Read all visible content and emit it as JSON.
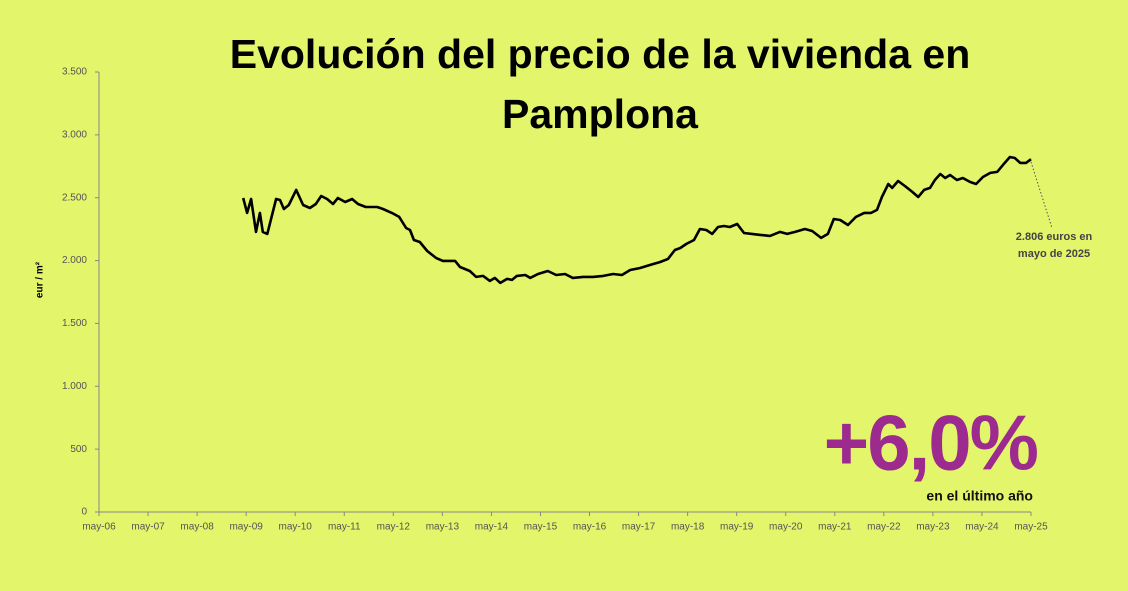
{
  "chart_data": {
    "type": "line",
    "title": "Evolución del precio de la vivienda en Pamplona",
    "y_label": "eur / m²",
    "grid": false,
    "xlim": [
      2006.33,
      2025.33
    ],
    "xticks": [
      {
        "value": 2006.33,
        "label": "may-06"
      },
      {
        "value": 2007.33,
        "label": "may-07"
      },
      {
        "value": 2008.33,
        "label": "may-08"
      },
      {
        "value": 2009.33,
        "label": "may-09"
      },
      {
        "value": 2010.33,
        "label": "may-10"
      },
      {
        "value": 2011.33,
        "label": "may-11"
      },
      {
        "value": 2012.33,
        "label": "may-12"
      },
      {
        "value": 2013.33,
        "label": "may-13"
      },
      {
        "value": 2014.33,
        "label": "may-14"
      },
      {
        "value": 2015.33,
        "label": "may-15"
      },
      {
        "value": 2016.33,
        "label": "may-16"
      },
      {
        "value": 2017.33,
        "label": "may-17"
      },
      {
        "value": 2018.33,
        "label": "may-18"
      },
      {
        "value": 2019.33,
        "label": "may-19"
      },
      {
        "value": 2020.33,
        "label": "may-20"
      },
      {
        "value": 2021.33,
        "label": "may-21"
      },
      {
        "value": 2022.33,
        "label": "may-22"
      },
      {
        "value": 2023.33,
        "label": "may-23"
      },
      {
        "value": 2024.33,
        "label": "may-24"
      },
      {
        "value": 2025.33,
        "label": "may-25"
      }
    ],
    "ylim": [
      0,
      3500
    ],
    "yticks": [
      0,
      500,
      {
        "value": 1000,
        "label": "1.000"
      },
      {
        "value": 1500,
        "label": "1.500"
      },
      {
        "value": 2000,
        "label": "2.000"
      },
      {
        "value": 2500,
        "label": "2.500"
      },
      {
        "value": 3000,
        "label": "3.000"
      },
      {
        "value": 3500,
        "label": "3.500"
      }
    ],
    "x": [
      2009.27,
      2009.35,
      2009.43,
      2009.53,
      2009.61,
      2009.67,
      2009.76,
      2009.94,
      2010.02,
      2010.1,
      2010.2,
      2010.35,
      2010.49,
      2010.63,
      2010.75,
      2010.86,
      2010.98,
      2011.1,
      2011.2,
      2011.35,
      2011.49,
      2011.61,
      2011.77,
      2012.0,
      2012.12,
      2012.3,
      2012.45,
      2012.59,
      2012.67,
      2012.75,
      2012.87,
      2013.02,
      2013.2,
      2013.34,
      2013.59,
      2013.69,
      2013.89,
      2014.02,
      2014.16,
      2014.3,
      2014.4,
      2014.51,
      2014.65,
      2014.75,
      2014.85,
      2015.02,
      2015.12,
      2015.28,
      2015.48,
      2015.65,
      2015.83,
      2015.99,
      2016.2,
      2016.4,
      2016.61,
      2016.81,
      2016.99,
      2017.16,
      2017.36,
      2017.56,
      2017.77,
      2017.93,
      2018.07,
      2018.18,
      2018.3,
      2018.46,
      2018.58,
      2018.71,
      2018.83,
      2018.95,
      2019.07,
      2019.19,
      2019.34,
      2019.48,
      2019.64,
      2019.81,
      2020.01,
      2020.21,
      2020.36,
      2020.52,
      2020.72,
      2020.87,
      2021.05,
      2021.19,
      2021.31,
      2021.44,
      2021.6,
      2021.76,
      2021.93,
      2022.07,
      2022.19,
      2022.29,
      2022.42,
      2022.5,
      2022.62,
      2022.76,
      2022.91,
      2023.03,
      2023.15,
      2023.27,
      2023.37,
      2023.48,
      2023.58,
      2023.68,
      2023.82,
      2023.94,
      2024.09,
      2024.21,
      2024.35,
      2024.5,
      2024.64,
      2024.76,
      2024.9,
      2025.0,
      2025.11,
      2025.23,
      2025.33
    ],
    "series": [
      {
        "color": "#000000",
        "values": [
          2498,
          2379,
          2490,
          2228,
          2379,
          2228,
          2212,
          2490,
          2482,
          2410,
          2442,
          2562,
          2442,
          2418,
          2450,
          2514,
          2490,
          2450,
          2498,
          2466,
          2490,
          2450,
          2426,
          2426,
          2410,
          2379,
          2347,
          2259,
          2243,
          2164,
          2148,
          2076,
          2021,
          1997,
          1997,
          1949,
          1917,
          1870,
          1878,
          1838,
          1862,
          1822,
          1854,
          1846,
          1878,
          1885,
          1862,
          1893,
          1917,
          1885,
          1893,
          1862,
          1870,
          1870,
          1878,
          1893,
          1885,
          1925,
          1941,
          1965,
          1989,
          2013,
          2084,
          2100,
          2132,
          2164,
          2251,
          2243,
          2212,
          2267,
          2275,
          2267,
          2291,
          2219,
          2212,
          2204,
          2196,
          2228,
          2212,
          2228,
          2251,
          2235,
          2180,
          2212,
          2331,
          2323,
          2283,
          2347,
          2379,
          2379,
          2403,
          2506,
          2609,
          2578,
          2633,
          2593,
          2546,
          2506,
          2562,
          2578,
          2641,
          2689,
          2657,
          2681,
          2641,
          2657,
          2625,
          2609,
          2665,
          2697,
          2705,
          2761,
          2824,
          2816,
          2777,
          2777,
          2806
        ]
      }
    ],
    "annotations": {
      "last_value": [
        "2.806 euros en",
        "mayo de 2025"
      ],
      "change": "+6,0%",
      "change_note": "en el último año"
    }
  }
}
